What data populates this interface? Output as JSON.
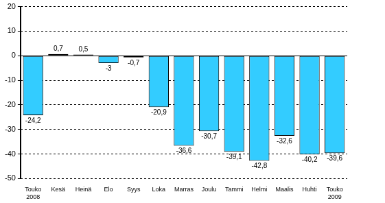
{
  "chart_data": {
    "type": "bar",
    "categories": [
      "Touko 2008",
      "Kesä",
      "Heinä",
      "Elo",
      "Syys",
      "Loka",
      "Marras",
      "Joulu",
      "Tammi",
      "Helmi",
      "Maalis",
      "Huhti",
      "Touko 2009"
    ],
    "values": [
      -24.2,
      0.7,
      0.5,
      -3,
      -0.7,
      -20.9,
      -36.6,
      -30.7,
      -39.1,
      -42.8,
      -32.6,
      -40.2,
      -39.6
    ],
    "value_labels": [
      "-24,2",
      "0,7",
      "0,5",
      "-3",
      "-0,7",
      "-20,9",
      "-36,6",
      "-30,7",
      "-39,1",
      "-42,8",
      "-32,6",
      "-40,2",
      "-39,6"
    ],
    "color": "#33ccff",
    "ylim": [
      -50,
      20
    ],
    "yticks": [
      -50,
      -40,
      -30,
      -20,
      -10,
      0,
      10,
      20
    ],
    "grid": true,
    "data_labels": true
  }
}
